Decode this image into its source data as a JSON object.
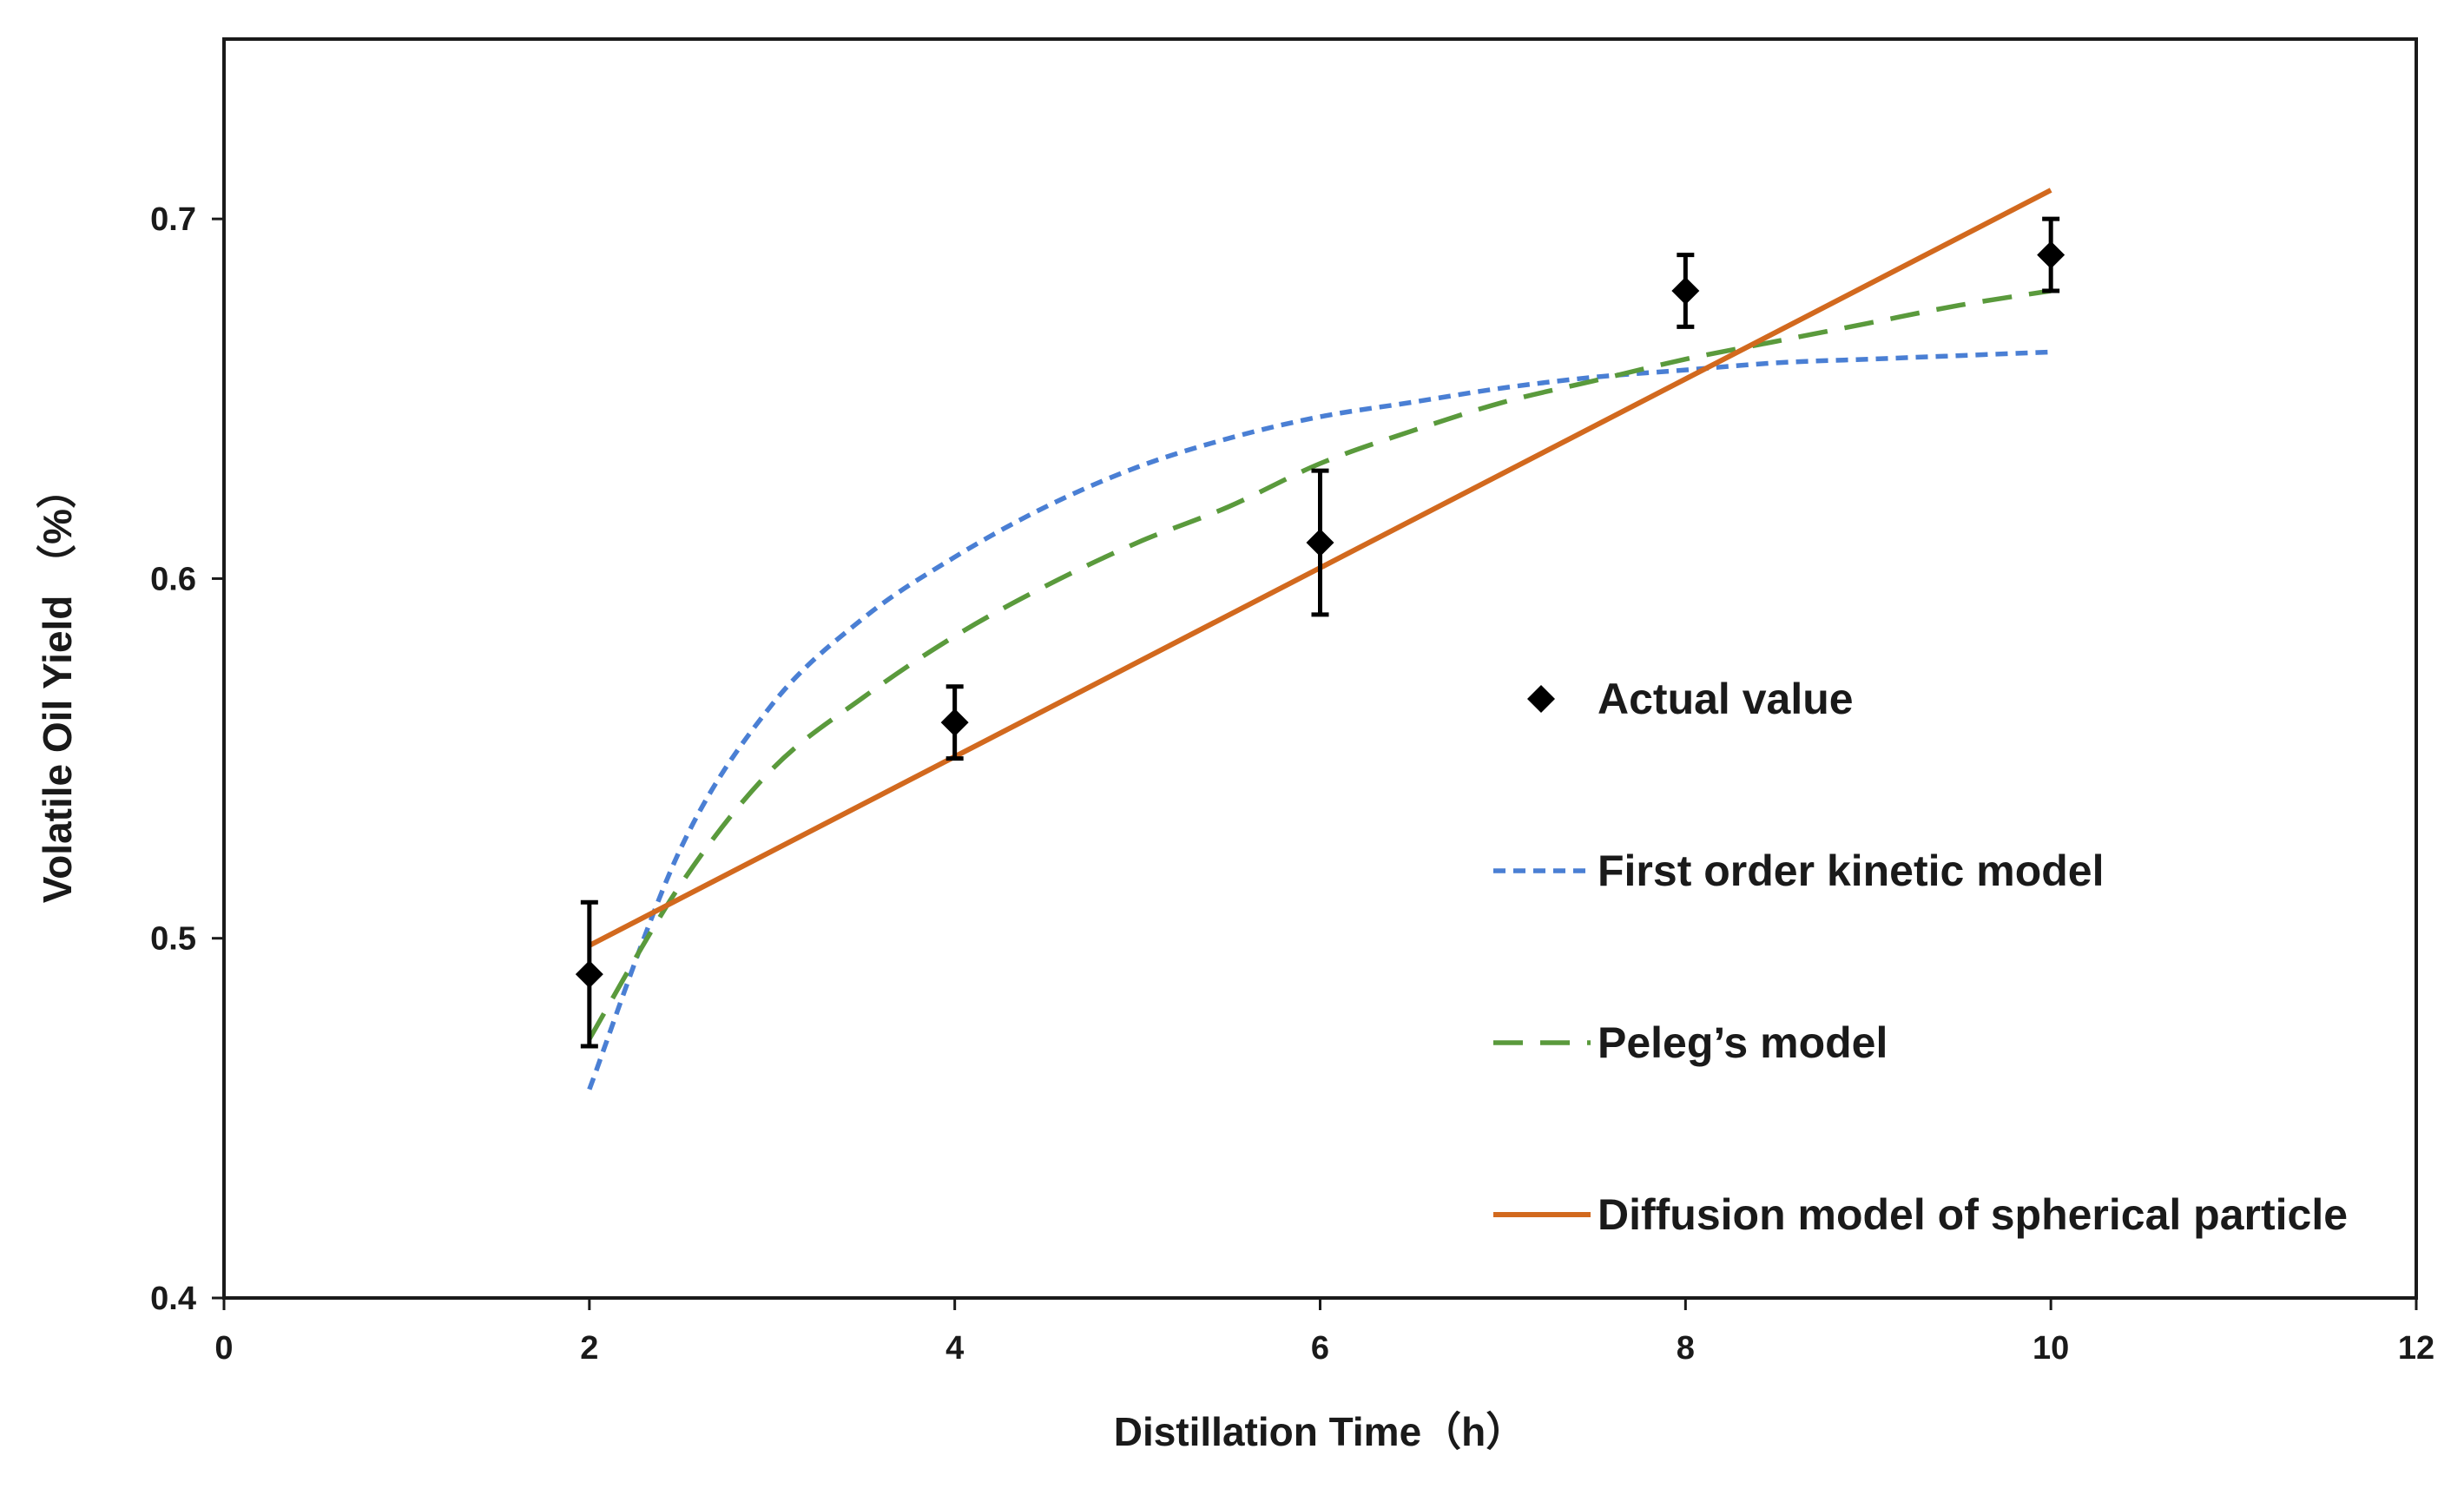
{
  "chart_data": {
    "type": "line",
    "xlabel": "Distillation Time（h）",
    "ylabel": "Volatile Oil Yield （%）",
    "xlim": [
      0,
      12
    ],
    "ylim": [
      0.4,
      0.75
    ],
    "xticks": [
      0,
      2,
      4,
      6,
      8,
      10,
      12
    ],
    "yticks": [
      0.4,
      0.5,
      0.6,
      0.7
    ],
    "xtick_labels": [
      "0",
      "2",
      "4",
      "6",
      "8",
      "10",
      "12"
    ],
    "ytick_labels": [
      "0.4",
      "0.5",
      "0.6",
      "0.7"
    ],
    "grid": false,
    "legend_position": "right",
    "series": [
      {
        "name": "Actual value",
        "kind": "scatter",
        "marker": "diamond",
        "color": "#000000",
        "x": [
          2,
          4,
          6,
          8,
          10
        ],
        "y": [
          0.49,
          0.56,
          0.61,
          0.68,
          0.69
        ],
        "error": [
          0.02,
          0.01,
          0.02,
          0.01,
          0.01
        ]
      },
      {
        "name": "First order kinetic model",
        "kind": "line",
        "style": "dotted",
        "color": "#4a7fd4",
        "x": [
          2,
          2.5,
          3,
          3.5,
          4,
          4.5,
          5,
          5.5,
          6,
          6.5,
          7,
          7.5,
          8,
          8.5,
          9,
          9.5,
          10
        ],
        "y": [
          0.458,
          0.525,
          0.565,
          0.589,
          0.606,
          0.62,
          0.631,
          0.639,
          0.645,
          0.649,
          0.653,
          0.656,
          0.658,
          0.66,
          0.661,
          0.662,
          0.663
        ]
      },
      {
        "name": "Peleg’s model",
        "kind": "line",
        "style": "dashed",
        "color": "#5a9a3c",
        "x": [
          2,
          2.5,
          3,
          3.5,
          4,
          4.5,
          5,
          5.5,
          6,
          6.5,
          7,
          7.5,
          8,
          8.5,
          9,
          9.5,
          10
        ],
        "y": [
          0.472,
          0.515,
          0.547,
          0.567,
          0.584,
          0.598,
          0.61,
          0.62,
          0.632,
          0.641,
          0.649,
          0.655,
          0.661,
          0.666,
          0.671,
          0.676,
          0.68
        ]
      },
      {
        "name": "Diffusion model of spherical particle",
        "kind": "line",
        "style": "solid",
        "color": "#d2691e",
        "x": [
          2,
          10
        ],
        "y": [
          0.498,
          0.708
        ]
      }
    ]
  }
}
